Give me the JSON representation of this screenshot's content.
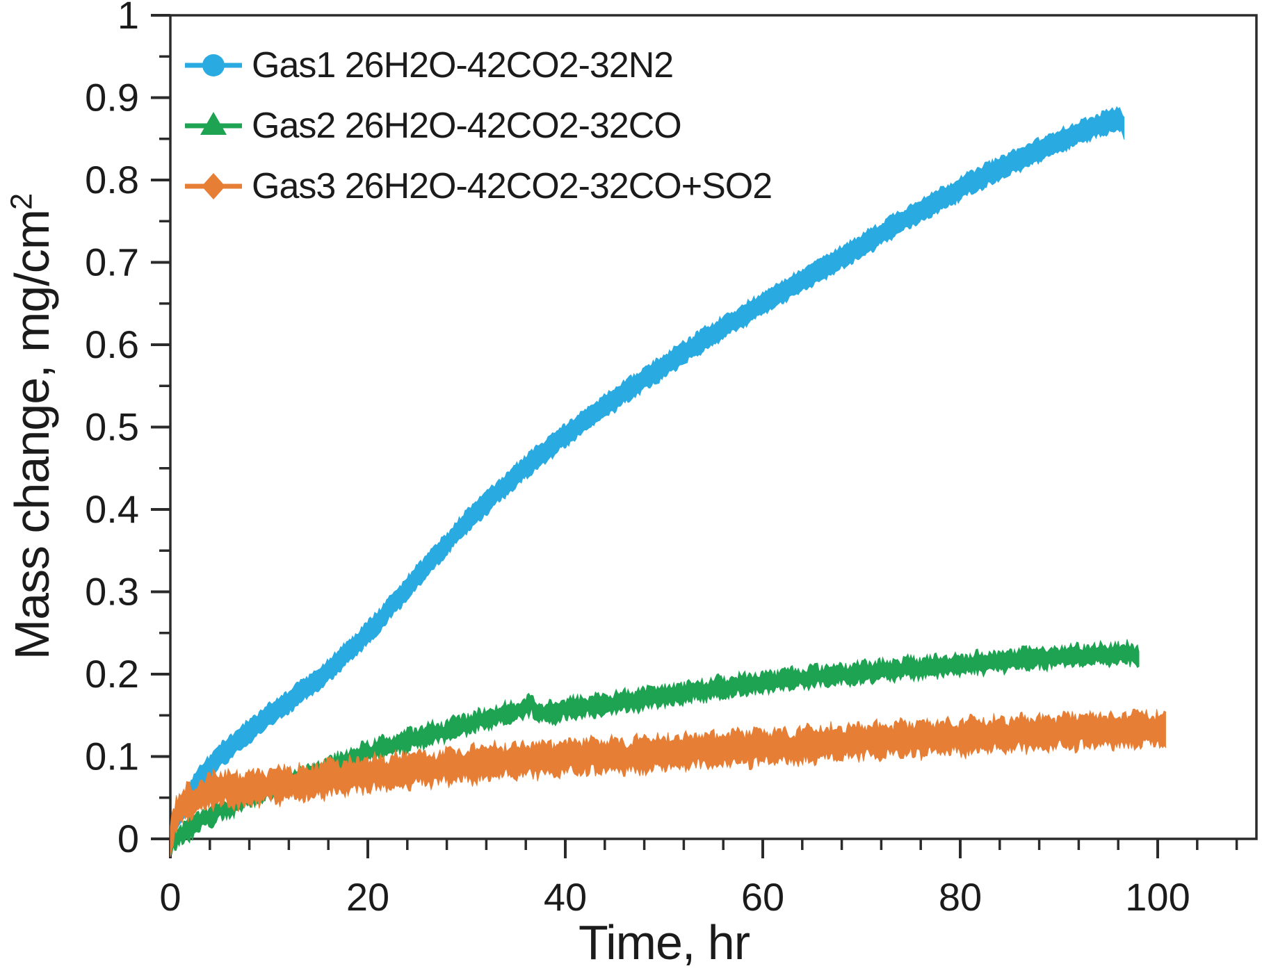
{
  "chart_data": {
    "type": "line",
    "title": "",
    "xlabel": "Time, hr",
    "ylabel": "Mass change, mg/cm",
    "ylabel_superscript": "2",
    "xlim": [
      0,
      110
    ],
    "ylim": [
      0,
      1
    ],
    "x_major_ticks": [
      0,
      20,
      40,
      60,
      80,
      100
    ],
    "x_minor_step": 4,
    "x_minor_max": 108,
    "y_major_step": 0.1,
    "y_minor_step": 0.05,
    "y_tick_labels": [
      "0",
      "0.1",
      "0.2",
      "0.3",
      "0.4",
      "0.5",
      "0.6",
      "0.7",
      "0.8",
      "0.9",
      "1"
    ],
    "grid": false,
    "legend_position": "top-left",
    "axis_color": "#2b2b2b",
    "text_color": "#1b1b1b",
    "series": [
      {
        "name": "Gas1 26H2O-42CO2-32N2",
        "color": "#29ABE2",
        "marker": "circle",
        "band_halfwidth": 0.013,
        "edge_noise": 0.003,
        "points": [
          [
            0,
            0.002
          ],
          [
            0.5,
            0.018
          ],
          [
            1,
            0.032
          ],
          [
            1.5,
            0.045
          ],
          [
            2,
            0.056
          ],
          [
            3,
            0.074
          ],
          [
            4,
            0.088
          ],
          [
            5,
            0.1
          ],
          [
            6,
            0.111
          ],
          [
            7,
            0.121
          ],
          [
            8,
            0.131
          ],
          [
            9,
            0.141
          ],
          [
            10,
            0.15
          ],
          [
            11,
            0.158
          ],
          [
            12,
            0.167
          ],
          [
            13,
            0.176
          ],
          [
            14,
            0.185
          ],
          [
            15,
            0.193
          ],
          [
            16,
            0.205
          ],
          [
            17,
            0.216
          ],
          [
            18,
            0.227
          ],
          [
            19,
            0.238
          ],
          [
            20,
            0.25
          ],
          [
            22,
            0.277
          ],
          [
            24,
            0.305
          ],
          [
            26,
            0.332
          ],
          [
            28,
            0.358
          ],
          [
            30,
            0.385
          ],
          [
            32,
            0.408
          ],
          [
            34,
            0.43
          ],
          [
            36,
            0.452
          ],
          [
            38,
            0.471
          ],
          [
            40,
            0.49
          ],
          [
            42,
            0.508
          ],
          [
            44,
            0.525
          ],
          [
            46,
            0.542
          ],
          [
            48,
            0.558
          ],
          [
            50,
            0.574
          ],
          [
            52,
            0.59
          ],
          [
            54,
            0.606
          ],
          [
            56,
            0.621
          ],
          [
            58,
            0.635
          ],
          [
            60,
            0.65
          ],
          [
            62,
            0.664
          ],
          [
            64,
            0.678
          ],
          [
            66,
            0.692
          ],
          [
            68,
            0.706
          ],
          [
            70,
            0.72
          ],
          [
            72,
            0.735
          ],
          [
            74,
            0.75
          ],
          [
            76,
            0.763
          ],
          [
            78,
            0.776
          ],
          [
            80,
            0.79
          ],
          [
            82,
            0.802
          ],
          [
            84,
            0.814
          ],
          [
            86,
            0.825
          ],
          [
            88,
            0.836
          ],
          [
            90,
            0.847
          ],
          [
            92,
            0.857
          ],
          [
            94,
            0.866
          ],
          [
            95,
            0.871
          ],
          [
            96,
            0.875
          ],
          [
            96.4,
            0.871
          ],
          [
            96.7,
            0.858
          ]
        ]
      },
      {
        "name": "Gas2 26H2O-42CO2-32CO",
        "color": "#1DA351",
        "marker": "triangle",
        "band_halfwidth": 0.011,
        "edge_noise": 0.005,
        "points": [
          [
            0,
            -0.005
          ],
          [
            0.5,
            0
          ],
          [
            1,
            0.005
          ],
          [
            2,
            0.013
          ],
          [
            3,
            0.021
          ],
          [
            4,
            0.028
          ],
          [
            5,
            0.034
          ],
          [
            6,
            0.04
          ],
          [
            7,
            0.046
          ],
          [
            8,
            0.051
          ],
          [
            9,
            0.056
          ],
          [
            10,
            0.061
          ],
          [
            11,
            0.065
          ],
          [
            12,
            0.069
          ],
          [
            13,
            0.073
          ],
          [
            14,
            0.077
          ],
          [
            15,
            0.081
          ],
          [
            16,
            0.085
          ],
          [
            17,
            0.09
          ],
          [
            18,
            0.095
          ],
          [
            19,
            0.1
          ],
          [
            20,
            0.105
          ],
          [
            21,
            0.109
          ],
          [
            22,
            0.112
          ],
          [
            23,
            0.116
          ],
          [
            24,
            0.119
          ],
          [
            25,
            0.122
          ],
          [
            26,
            0.126
          ],
          [
            27,
            0.129
          ],
          [
            28,
            0.132
          ],
          [
            29,
            0.136
          ],
          [
            30,
            0.139
          ],
          [
            31,
            0.142
          ],
          [
            32,
            0.145
          ],
          [
            33,
            0.149
          ],
          [
            34,
            0.152
          ],
          [
            35,
            0.155
          ],
          [
            36,
            0.158
          ],
          [
            36.6,
            0.167
          ],
          [
            37.1,
            0.151
          ],
          [
            38,
            0.153
          ],
          [
            39,
            0.155
          ],
          [
            40,
            0.157
          ],
          [
            42,
            0.161
          ],
          [
            44,
            0.164
          ],
          [
            46,
            0.167
          ],
          [
            48,
            0.17
          ],
          [
            50,
            0.174
          ],
          [
            52,
            0.177
          ],
          [
            54,
            0.181
          ],
          [
            56,
            0.184
          ],
          [
            58,
            0.187
          ],
          [
            60,
            0.19
          ],
          [
            62,
            0.193
          ],
          [
            64,
            0.196
          ],
          [
            66,
            0.198
          ],
          [
            68,
            0.2
          ],
          [
            70,
            0.202
          ],
          [
            72,
            0.204
          ],
          [
            74,
            0.206
          ],
          [
            76,
            0.208
          ],
          [
            78,
            0.21
          ],
          [
            80,
            0.212
          ],
          [
            82,
            0.214
          ],
          [
            84,
            0.216
          ],
          [
            86,
            0.218
          ],
          [
            88,
            0.219
          ],
          [
            90,
            0.221
          ],
          [
            92,
            0.222
          ],
          [
            94,
            0.224
          ],
          [
            96,
            0.225
          ],
          [
            97.5,
            0.226
          ],
          [
            98.2,
            0.219
          ]
        ]
      },
      {
        "name": "Gas3 26H2O-42CO2-32CO+SO2",
        "color": "#E67E35",
        "marker": "diamond",
        "band_halfwidth": 0.018,
        "edge_noise": 0.007,
        "points": [
          [
            0,
            0.004
          ],
          [
            0.4,
            0.024
          ],
          [
            0.8,
            0.035
          ],
          [
            1.5,
            0.043
          ],
          [
            2.5,
            0.049
          ],
          [
            3.5,
            0.054
          ],
          [
            4.5,
            0.06
          ],
          [
            5.5,
            0.062
          ],
          [
            6,
            0.059
          ],
          [
            7,
            0.059
          ],
          [
            8,
            0.061
          ],
          [
            10,
            0.064
          ],
          [
            12,
            0.067
          ],
          [
            14,
            0.07
          ],
          [
            16,
            0.073
          ],
          [
            18,
            0.076
          ],
          [
            20,
            0.078
          ],
          [
            22,
            0.081
          ],
          [
            24,
            0.083
          ],
          [
            26,
            0.086
          ],
          [
            28,
            0.088
          ],
          [
            30,
            0.09
          ],
          [
            32,
            0.092
          ],
          [
            34,
            0.094
          ],
          [
            36,
            0.095
          ],
          [
            38,
            0.097
          ],
          [
            40,
            0.098
          ],
          [
            42,
            0.099
          ],
          [
            44,
            0.1
          ],
          [
            46,
            0.101
          ],
          [
            48,
            0.102
          ],
          [
            50,
            0.104
          ],
          [
            52,
            0.105
          ],
          [
            54,
            0.107
          ],
          [
            56,
            0.108
          ],
          [
            58,
            0.11
          ],
          [
            60,
            0.111
          ],
          [
            62,
            0.112
          ],
          [
            64,
            0.113
          ],
          [
            66,
            0.115
          ],
          [
            68,
            0.116
          ],
          [
            70,
            0.118
          ],
          [
            72,
            0.119
          ],
          [
            74,
            0.12
          ],
          [
            76,
            0.121
          ],
          [
            78,
            0.123
          ],
          [
            80,
            0.124
          ],
          [
            82,
            0.125
          ],
          [
            84,
            0.126
          ],
          [
            86,
            0.127
          ],
          [
            88,
            0.128
          ],
          [
            90,
            0.129
          ],
          [
            92,
            0.13
          ],
          [
            94,
            0.131
          ],
          [
            96,
            0.132
          ],
          [
            98,
            0.133
          ],
          [
            100,
            0.133
          ],
          [
            100.8,
            0.129
          ]
        ]
      }
    ]
  }
}
